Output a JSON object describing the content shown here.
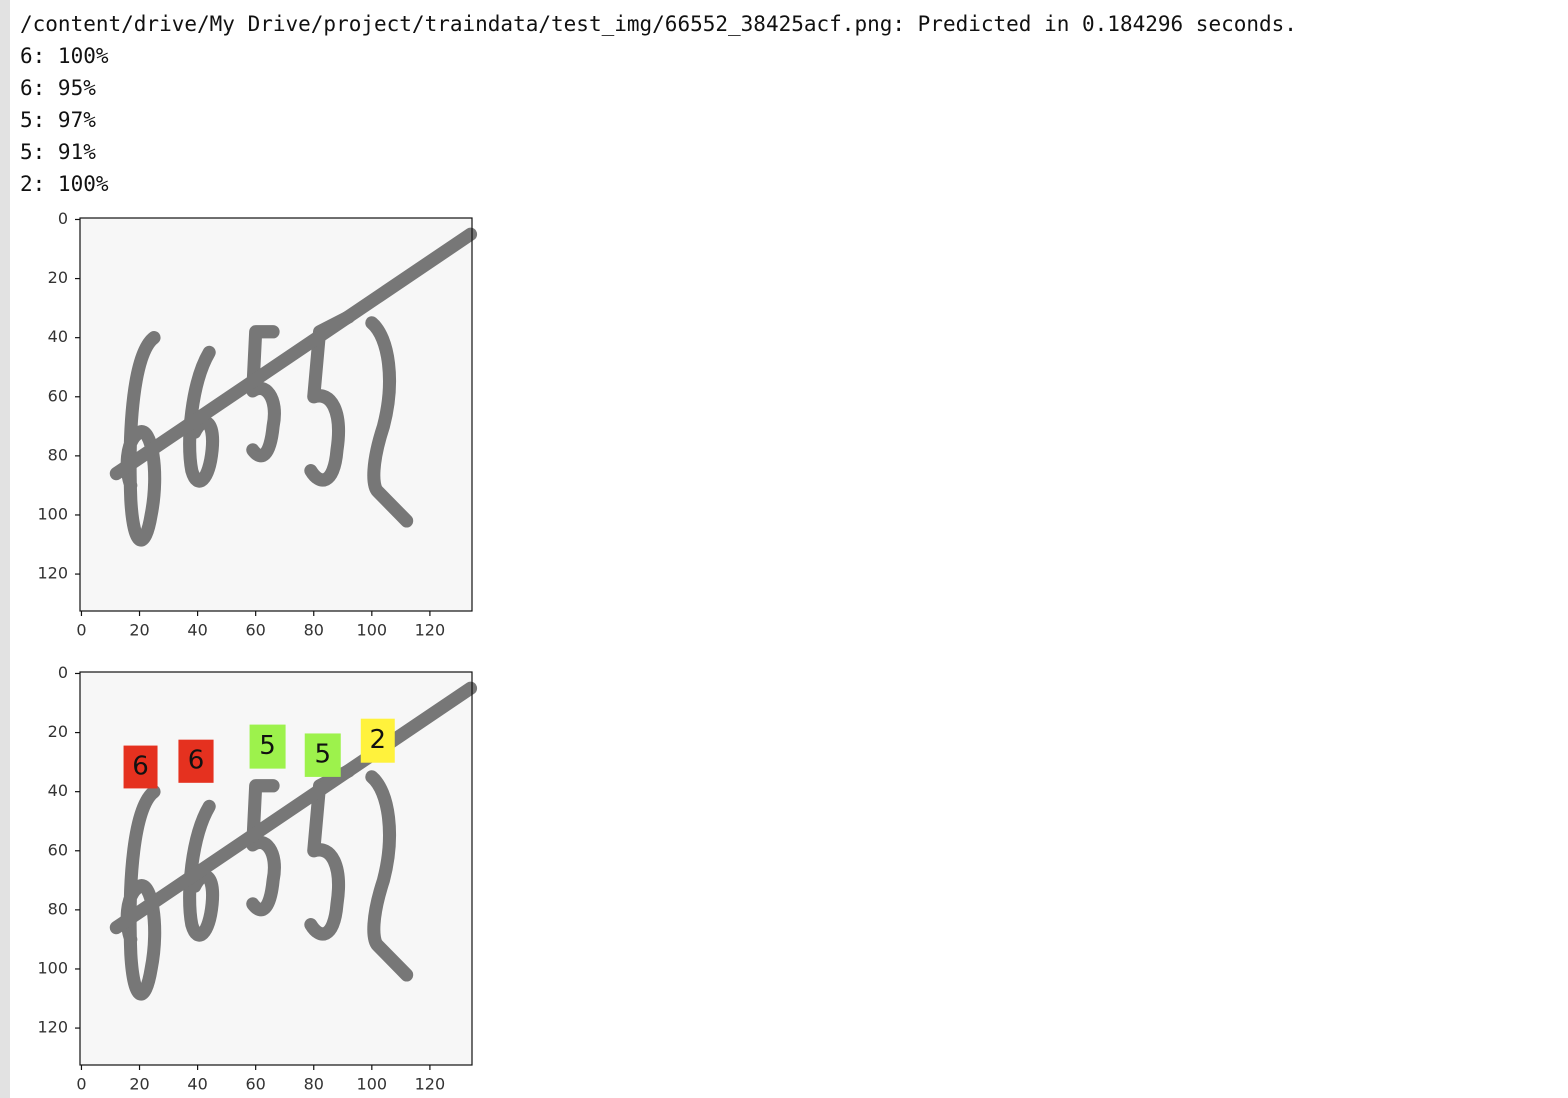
{
  "output_lines": [
    "/content/drive/My Drive/project/traindata/test_img/66552_38425acf.png: Predicted in 0.184296 seconds.",
    "6: 100%",
    "6: 95%",
    "5: 97%",
    "5: 91%",
    "2: 100%"
  ],
  "plots": [
    {
      "xlim": [
        -0.5,
        134.5
      ],
      "ylim": [
        132.5,
        -0.5
      ],
      "xticks": [
        0,
        20,
        40,
        60,
        80,
        100,
        120
      ],
      "yticks": [
        0,
        20,
        40,
        60,
        80,
        100,
        120
      ],
      "boxes": []
    },
    {
      "xlim": [
        -0.5,
        134.5
      ],
      "ylim": [
        132.5,
        -0.5
      ],
      "xticks": [
        0,
        20,
        40,
        60,
        80,
        100,
        120
      ],
      "yticks": [
        0,
        20,
        40,
        60,
        80,
        100,
        120
      ],
      "boxes": [
        {
          "label": "6",
          "color": "#e5311f",
          "x": [
            14.5,
            26.2
          ],
          "y": [
            24.4,
            38.9
          ]
        },
        {
          "label": "6",
          "color": "#e5311f",
          "x": [
            33.4,
            45.5
          ],
          "y": [
            22.4,
            37
          ]
        },
        {
          "label": "5",
          "color": "#9df24c",
          "x": [
            57.9,
            70.3
          ],
          "y": [
            17.3,
            32.2
          ]
        },
        {
          "label": "5",
          "color": "#9df24c",
          "x": [
            76.9,
            89.3
          ],
          "y": [
            20.3,
            35
          ]
        },
        {
          "label": "2",
          "color": "#fff23c",
          "x": [
            96.2,
            107.9
          ],
          "y": [
            15.3,
            30.2
          ]
        }
      ]
    }
  ]
}
